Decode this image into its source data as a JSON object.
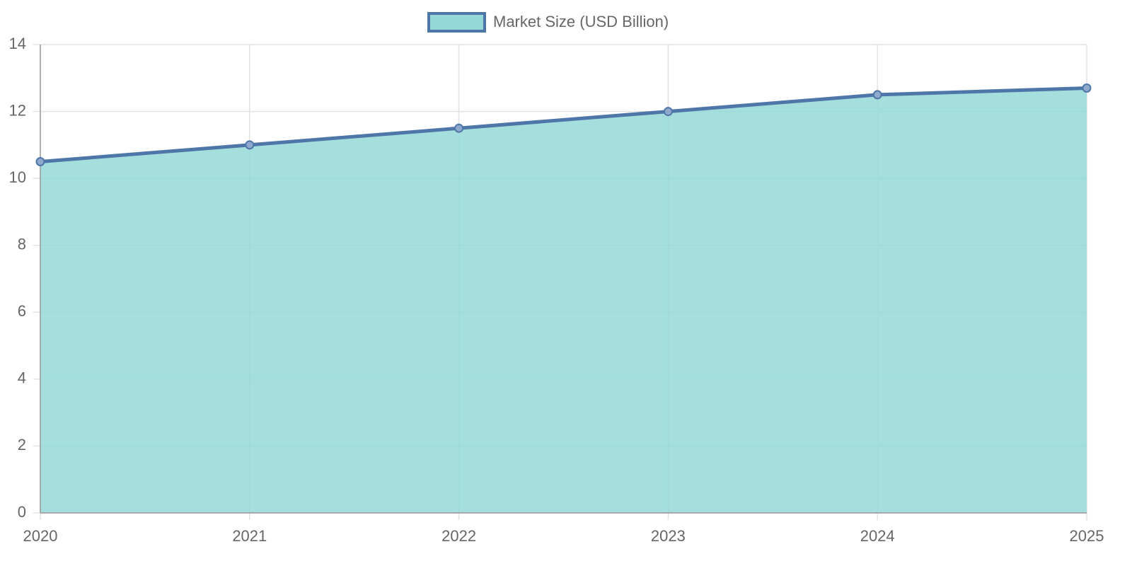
{
  "chart_data": {
    "type": "area",
    "categories": [
      "2020",
      "2021",
      "2022",
      "2023",
      "2024",
      "2025"
    ],
    "series": [
      {
        "name": "Market Size (USD Billion)",
        "color": "#4e76a8",
        "fill": "#94d9d7",
        "values": [
          10.5,
          11,
          11.5,
          12,
          12.5,
          12.7
        ]
      }
    ],
    "ylim": [
      0,
      14
    ],
    "yticks": [
      0,
      2,
      4,
      6,
      8,
      10,
      12,
      14
    ],
    "grid": true,
    "legend": "top"
  }
}
